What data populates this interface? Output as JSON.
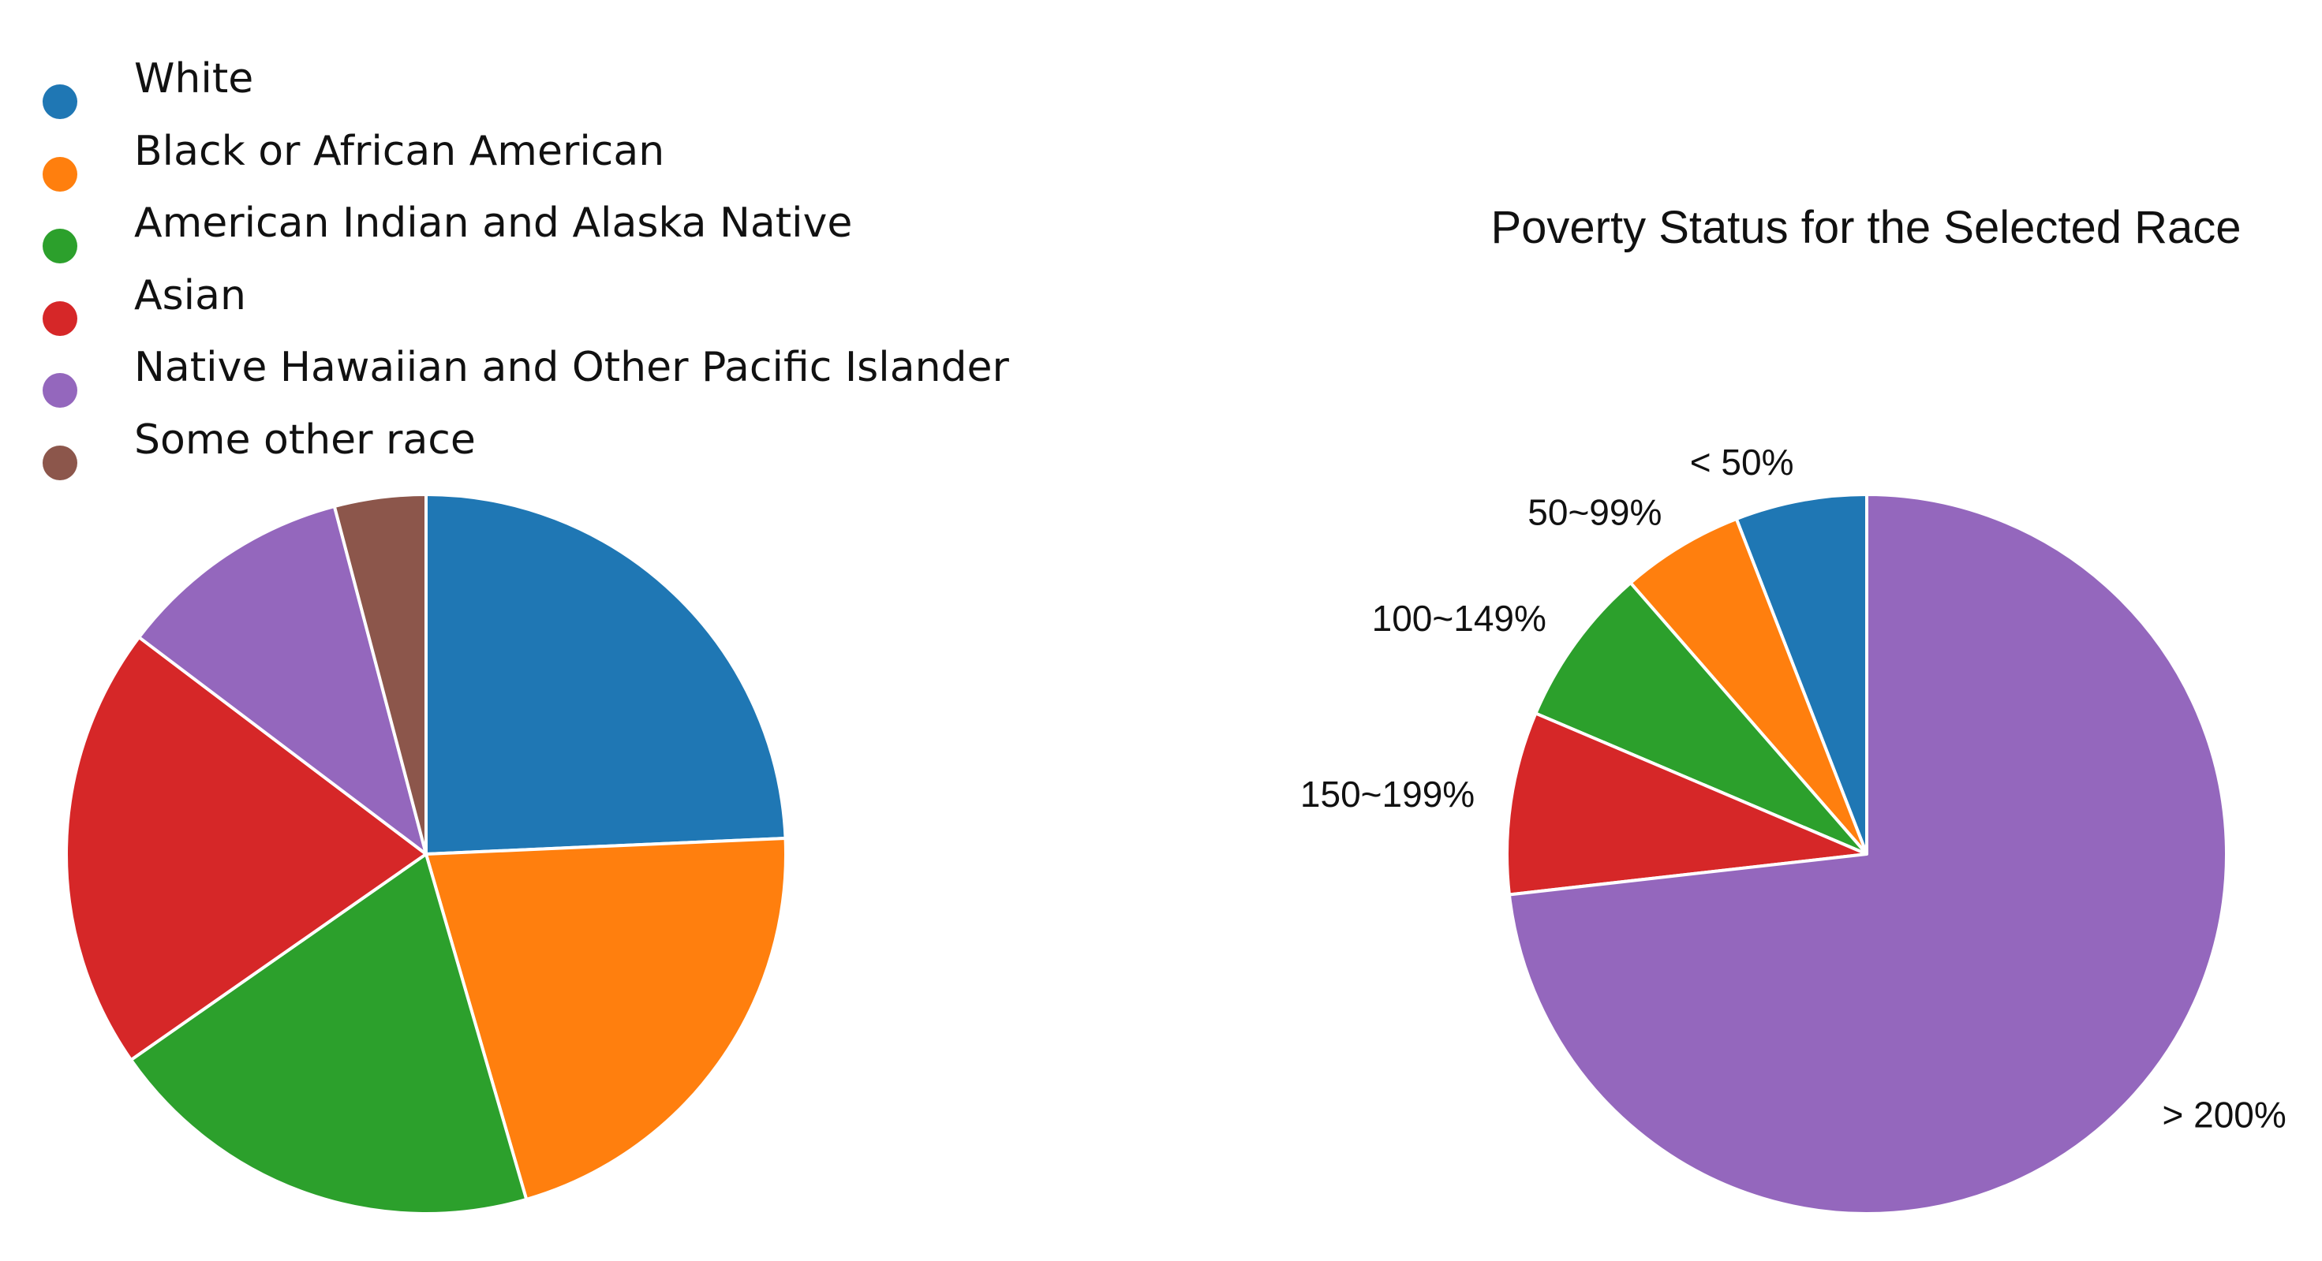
{
  "chart_data": [
    {
      "type": "pie",
      "title": "",
      "categories": [
        "White",
        "Black or African American",
        "American Indian and Alaska Native",
        "Asian",
        "Native Hawaiian and Other Pacific Islander",
        "Some other race"
      ],
      "values": [
        24.3,
        21.2,
        19.8,
        20.0,
        10.6,
        4.1
      ],
      "colors": [
        "#1f77b4",
        "#ff7f0e",
        "#2ca02c",
        "#d62728",
        "#9467bd",
        "#8c564b"
      ],
      "start": "top",
      "direction": "clockwise",
      "legend": "top-left",
      "slice_labels": false
    },
    {
      "type": "pie",
      "title": "Poverty Status for the Selected Race",
      "categories": [
        "< 50%",
        "50~99%",
        "100~149%",
        "150~199%",
        "> 200%"
      ],
      "values": [
        5.9,
        5.5,
        7.2,
        8.2,
        73.2
      ],
      "colors": [
        "#1f77b4",
        "#ff7f0e",
        "#2ca02c",
        "#d62728",
        "#9467bd"
      ],
      "start": "top",
      "direction": "counterclockwise",
      "legend": "none",
      "slice_labels": true
    }
  ]
}
